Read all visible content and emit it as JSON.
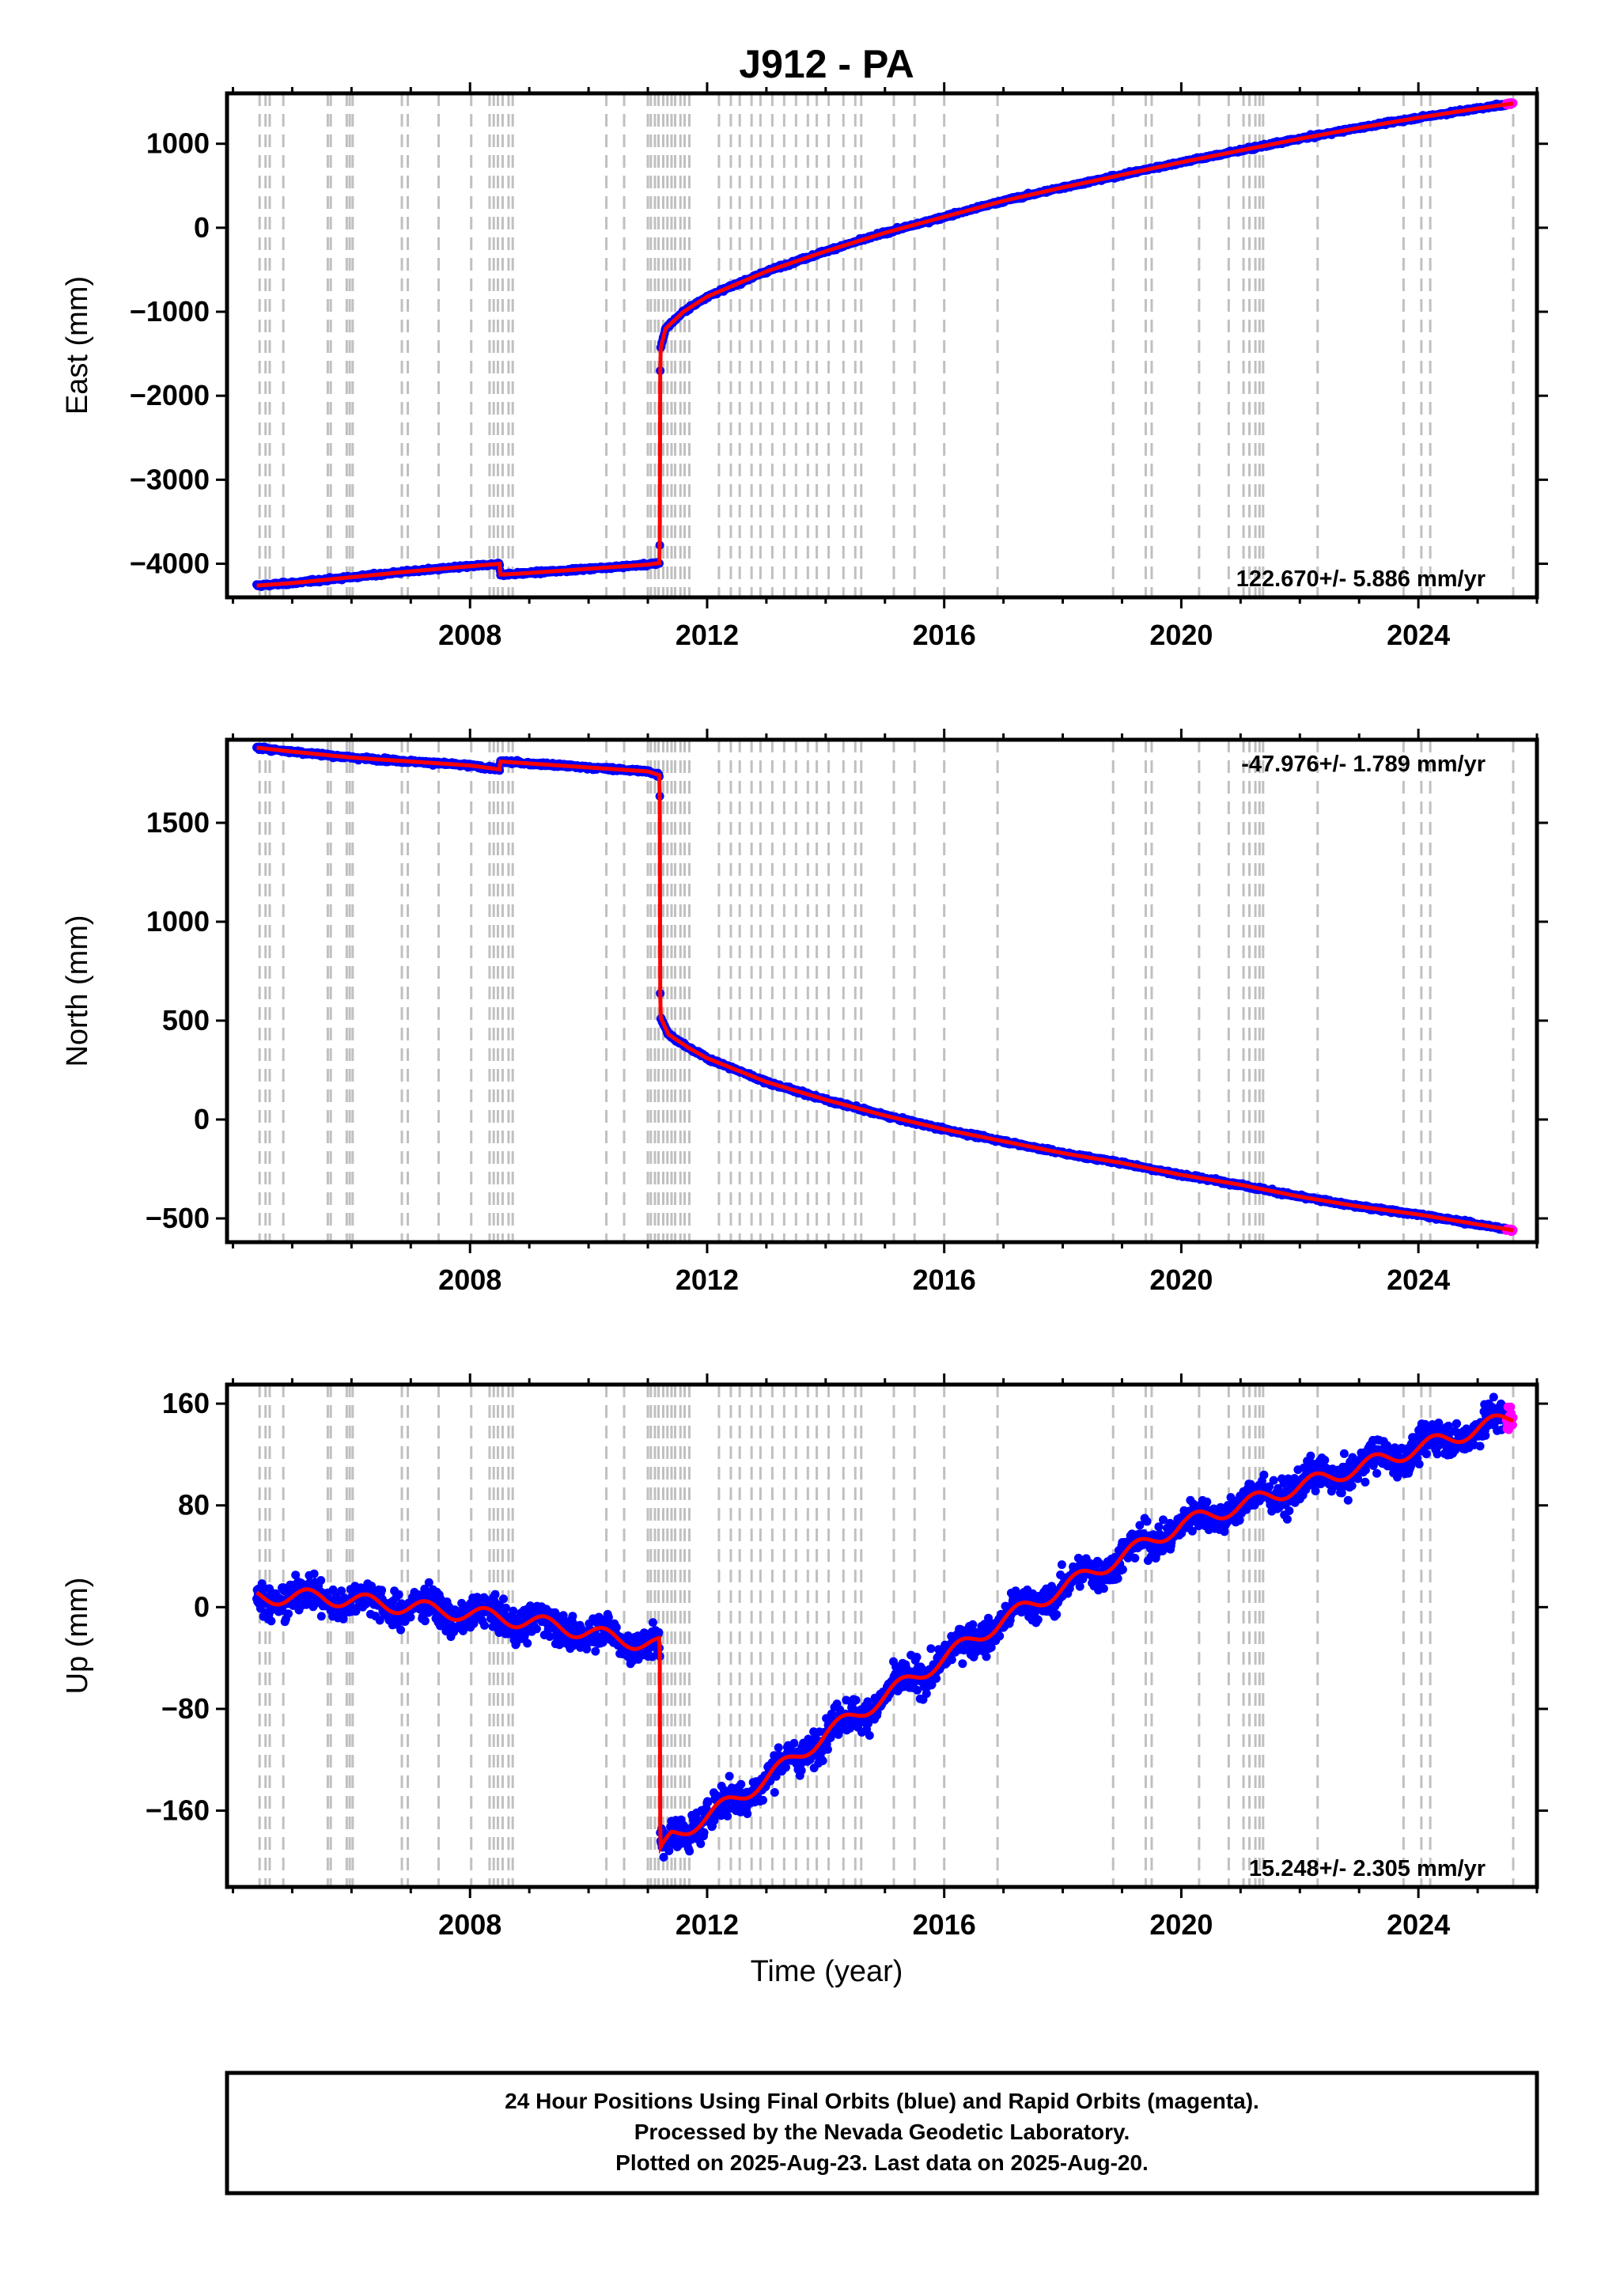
{
  "title": "J912 - PA",
  "colors": {
    "final": "#0000ff",
    "rapid": "#ff00ff",
    "model": "#ff0000",
    "events": "#c0c0c0",
    "frame": "#000000"
  },
  "x_axis": {
    "label": "Time (year)",
    "ticks": [
      2008,
      2012,
      2016,
      2020,
      2024
    ],
    "tick_labels": [
      "2008",
      "2012",
      "2016",
      "2020",
      "2024"
    ],
    "range": [
      2003.9,
      2026.0
    ]
  },
  "event_years": [
    2004.45,
    2004.55,
    2004.62,
    2004.85,
    2005.6,
    2005.65,
    2005.92,
    2005.97,
    2006.02,
    2006.85,
    2006.95,
    2007.47,
    2008.02,
    2008.33,
    2008.4,
    2008.47,
    2008.55,
    2008.65,
    2008.72,
    2010.3,
    2010.6,
    2011.0,
    2011.05,
    2011.12,
    2011.18,
    2011.26,
    2011.33,
    2011.4,
    2011.46,
    2011.55,
    2011.62,
    2011.7,
    2012.2,
    2012.4,
    2012.55,
    2012.75,
    2012.9,
    2013.1,
    2013.3,
    2013.5,
    2013.7,
    2013.85,
    2014.05,
    2014.3,
    2014.5,
    2014.6,
    2015.15,
    2015.5,
    2016.0,
    2016.9,
    2018.85,
    2019.4,
    2019.5,
    2020.3,
    2020.8,
    2021.05,
    2021.15,
    2021.25,
    2021.32,
    2021.38,
    2022.3,
    2023.75,
    2024.05,
    2024.2,
    2025.6
  ],
  "chart_data": [
    {
      "type": "scatter",
      "component": "east",
      "ylabel": "East (mm)",
      "ylim": [
        -4400,
        1600
      ],
      "yticks": [
        1000,
        0,
        -1000,
        -2000,
        -3000,
        -4000
      ],
      "ytick_labels": [
        "1000",
        "0",
        "−1000",
        "−2000",
        "−3000",
        "−4000"
      ],
      "rate_label": "122.670+/- 5.886 mm/yr",
      "rate_position": "bottom-right",
      "anchors": [
        [
          2004.4,
          -4260
        ],
        [
          2005.0,
          -4230
        ],
        [
          2006.0,
          -4160
        ],
        [
          2007.0,
          -4090
        ],
        [
          2008.0,
          -4030
        ],
        [
          2008.5,
          -4000
        ],
        [
          2008.51,
          -4130
        ],
        [
          2009.0,
          -4110
        ],
        [
          2010.0,
          -4060
        ],
        [
          2011.0,
          -4010
        ],
        [
          2011.2,
          -3990
        ],
        [
          2011.21,
          -1450
        ],
        [
          2011.3,
          -1200
        ],
        [
          2011.6,
          -1000
        ],
        [
          2012.0,
          -820
        ],
        [
          2013.0,
          -520
        ],
        [
          2014.0,
          -280
        ],
        [
          2015.0,
          -60
        ],
        [
          2016.0,
          130
        ],
        [
          2017.0,
          320
        ],
        [
          2018.0,
          480
        ],
        [
          2019.0,
          630
        ],
        [
          2020.0,
          780
        ],
        [
          2021.0,
          920
        ],
        [
          2022.0,
          1060
        ],
        [
          2023.0,
          1190
        ],
        [
          2024.0,
          1310
        ],
        [
          2025.0,
          1420
        ],
        [
          2025.6,
          1480
        ]
      ],
      "noise": 12,
      "seasonal": 0
    },
    {
      "type": "scatter",
      "component": "north",
      "ylabel": "North (mm)",
      "ylim": [
        -620,
        1920
      ],
      "yticks": [
        1500,
        1000,
        500,
        0,
        -500
      ],
      "ytick_labels": [
        "1500",
        "1000",
        "500",
        "0",
        "−500"
      ],
      "rate_label": "-47.976+/- 1.789 mm/yr",
      "rate_position": "top-right",
      "anchors": [
        [
          2004.4,
          1880
        ],
        [
          2005.0,
          1860
        ],
        [
          2006.0,
          1830
        ],
        [
          2007.0,
          1810
        ],
        [
          2008.0,
          1790
        ],
        [
          2008.5,
          1770
        ],
        [
          2008.51,
          1810
        ],
        [
          2009.0,
          1800
        ],
        [
          2010.0,
          1780
        ],
        [
          2011.0,
          1760
        ],
        [
          2011.2,
          1740
        ],
        [
          2011.21,
          520
        ],
        [
          2011.35,
          430
        ],
        [
          2011.7,
          360
        ],
        [
          2012.0,
          310
        ],
        [
          2013.0,
          190
        ],
        [
          2014.0,
          100
        ],
        [
          2015.0,
          20
        ],
        [
          2016.0,
          -50
        ],
        [
          2017.0,
          -110
        ],
        [
          2018.0,
          -170
        ],
        [
          2019.0,
          -220
        ],
        [
          2020.0,
          -280
        ],
        [
          2021.0,
          -330
        ],
        [
          2022.0,
          -390
        ],
        [
          2023.0,
          -440
        ],
        [
          2024.0,
          -480
        ],
        [
          2025.0,
          -530
        ],
        [
          2025.6,
          -560
        ]
      ],
      "noise": 6,
      "seasonal": 0
    },
    {
      "type": "scatter",
      "component": "up",
      "ylabel": "Up (mm)",
      "ylim": [
        -220,
        175
      ],
      "yticks": [
        160,
        80,
        0,
        -80,
        -160
      ],
      "ytick_labels": [
        "160",
        "80",
        "0",
        "−80",
        "−160"
      ],
      "rate_label": "15.248+/- 2.305 mm/yr",
      "rate_position": "bottom-right",
      "anchors": [
        [
          2004.4,
          8
        ],
        [
          2005.5,
          8
        ],
        [
          2007.0,
          0
        ],
        [
          2008.5,
          -8
        ],
        [
          2009.5,
          -15
        ],
        [
          2010.5,
          -25
        ],
        [
          2011.2,
          -30
        ],
        [
          2011.21,
          -195
        ],
        [
          2011.4,
          -180
        ],
        [
          2012.0,
          -165
        ],
        [
          2013.0,
          -135
        ],
        [
          2014.0,
          -100
        ],
        [
          2015.0,
          -70
        ],
        [
          2016.0,
          -40
        ],
        [
          2017.0,
          -10
        ],
        [
          2018.0,
          15
        ],
        [
          2019.0,
          40
        ],
        [
          2020.0,
          65
        ],
        [
          2021.0,
          80
        ],
        [
          2022.0,
          95
        ],
        [
          2023.0,
          110
        ],
        [
          2024.0,
          125
        ],
        [
          2025.0,
          140
        ],
        [
          2025.6,
          150
        ]
      ],
      "noise": 9,
      "seasonal": 6
    }
  ],
  "footer": {
    "line1": "24 Hour Positions Using Final Orbits (blue) and Rapid Orbits (magenta).",
    "line2": "Processed by the Nevada Geodetic Laboratory.",
    "line3": "Plotted on 2025-Aug-23. Last data on 2025-Aug-20."
  }
}
